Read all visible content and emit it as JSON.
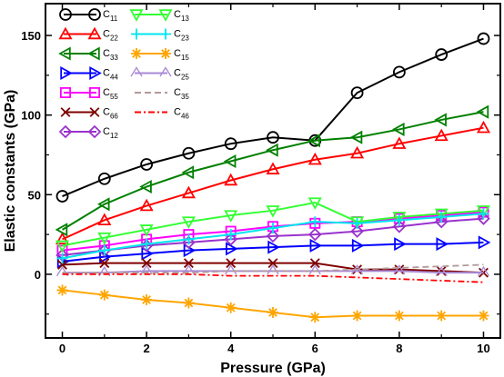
{
  "chart_data": {
    "type": "line",
    "xlabel": "Pressure (GPa)",
    "ylabel": "Elastic constants (GPa)",
    "xlim": [
      -0.4,
      10.4
    ],
    "ylim": [
      -40,
      170
    ],
    "xticks": [
      0,
      2,
      4,
      6,
      8,
      10
    ],
    "xminor": [
      1,
      3,
      5,
      7,
      9
    ],
    "yticks": [
      0,
      50,
      100,
      150
    ],
    "yminor": [
      -25,
      25,
      75,
      125
    ],
    "x": [
      0,
      1,
      2,
      3,
      4,
      5,
      6,
      7,
      8,
      9,
      10
    ],
    "legend_position": "top-left",
    "series": [
      {
        "name": "C",
        "sub": "11",
        "color": "#000000",
        "marker": "circle",
        "dash": "",
        "values": [
          49,
          60,
          69,
          76,
          82,
          86,
          84,
          114,
          127,
          138,
          148
        ]
      },
      {
        "name": "C",
        "sub": "22",
        "color": "#ff0000",
        "marker": "triangle-up",
        "dash": "",
        "values": [
          22,
          34,
          43,
          51,
          59,
          66,
          72,
          76,
          82,
          87,
          92
        ]
      },
      {
        "name": "C",
        "sub": "33",
        "color": "#008000",
        "marker": "triangle-left",
        "dash": "",
        "values": [
          28,
          44,
          55,
          64,
          71,
          78,
          84,
          86,
          91,
          97,
          102
        ]
      },
      {
        "name": "C",
        "sub": "44",
        "color": "#0000ff",
        "marker": "triangle-right",
        "dash": "",
        "values": [
          8,
          11,
          13,
          15,
          16,
          17,
          18,
          18,
          19,
          19,
          20
        ]
      },
      {
        "name": "C",
        "sub": "55",
        "color": "#ff00ff",
        "marker": "square",
        "dash": "",
        "values": [
          15,
          18,
          22,
          25,
          27,
          30,
          32,
          33,
          35,
          37,
          39
        ]
      },
      {
        "name": "C",
        "sub": "66",
        "color": "#800000",
        "marker": "x",
        "dash": "",
        "values": [
          6,
          7,
          7,
          7,
          7,
          7,
          7,
          3,
          3,
          2,
          1
        ]
      },
      {
        "name": "C",
        "sub": "12",
        "color": "#9932cc",
        "marker": "diamond",
        "dash": "",
        "values": [
          12,
          15,
          18,
          20,
          22,
          24,
          25,
          27,
          30,
          33,
          35
        ]
      },
      {
        "name": "C",
        "sub": "13",
        "color": "#33ff33",
        "marker": "triangle-down",
        "dash": "",
        "values": [
          18,
          23,
          28,
          33,
          37,
          40,
          45,
          33,
          36,
          38,
          40
        ]
      },
      {
        "name": "C",
        "sub": "23",
        "color": "#00e5ee",
        "marker": "plus",
        "dash": "",
        "values": [
          10,
          15,
          19,
          22,
          25,
          29,
          33,
          32,
          34,
          36,
          38
        ]
      },
      {
        "name": "C",
        "sub": "15",
        "color": "#ffa500",
        "marker": "star",
        "dash": "",
        "values": [
          -10,
          -13,
          -16,
          -18,
          -21,
          -24,
          -27,
          -26,
          -26,
          -26,
          -26
        ]
      },
      {
        "name": "C",
        "sub": "25",
        "color": "#a98ad6",
        "marker": "caret",
        "dash": "",
        "values": [
          1,
          1,
          2,
          2,
          2,
          2,
          2,
          2,
          2,
          1,
          1
        ]
      },
      {
        "name": "C",
        "sub": "35",
        "color": "#b39a9a",
        "marker": "none",
        "dash": "7,4",
        "values": [
          1,
          1,
          1,
          1,
          2,
          2,
          2,
          3,
          4,
          5,
          6
        ]
      },
      {
        "name": "C",
        "sub": "46",
        "color": "#ff0000",
        "marker": "none",
        "dash": "7,3,2,3",
        "values": [
          0,
          0,
          0,
          0,
          -1,
          -1,
          -1,
          -2,
          -3,
          -4,
          -5
        ]
      }
    ]
  }
}
